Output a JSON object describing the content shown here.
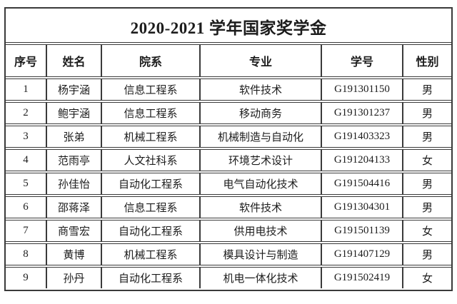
{
  "title": "2020-2021 学年国家奖学金",
  "table": {
    "headers": [
      "序号",
      "姓名",
      "院系",
      "专业",
      "学号",
      "性别"
    ],
    "rows": [
      [
        "1",
        "杨宇涵",
        "信息工程系",
        "软件技术",
        "G191301150",
        "男"
      ],
      [
        "2",
        "鲍宇涵",
        "信息工程系",
        "移动商务",
        "G191301237",
        "男"
      ],
      [
        "3",
        "张弟",
        "机械工程系",
        "机械制造与自动化",
        "G191403323",
        "男"
      ],
      [
        "4",
        "范雨亭",
        "人文社科系",
        "环境艺术设计",
        "G191204133",
        "女"
      ],
      [
        "5",
        "孙佳怡",
        "自动化工程系",
        "电气自动化技术",
        "G191504416",
        "男"
      ],
      [
        "6",
        "邵蒋泽",
        "信息工程系",
        "软件技术",
        "G191304301",
        "男"
      ],
      [
        "7",
        "商雪宏",
        "自动化工程系",
        "供用电技术",
        "G191501139",
        "女"
      ],
      [
        "8",
        "黄博",
        "机械工程系",
        "模具设计与制造",
        "G191407129",
        "男"
      ],
      [
        "9",
        "孙丹",
        "自动化工程系",
        "机电一体化技术",
        "G191502419",
        "女"
      ]
    ]
  },
  "colors": {
    "border": "#3a3a3a",
    "text": "#1c1c1c",
    "background": "#ffffff"
  }
}
